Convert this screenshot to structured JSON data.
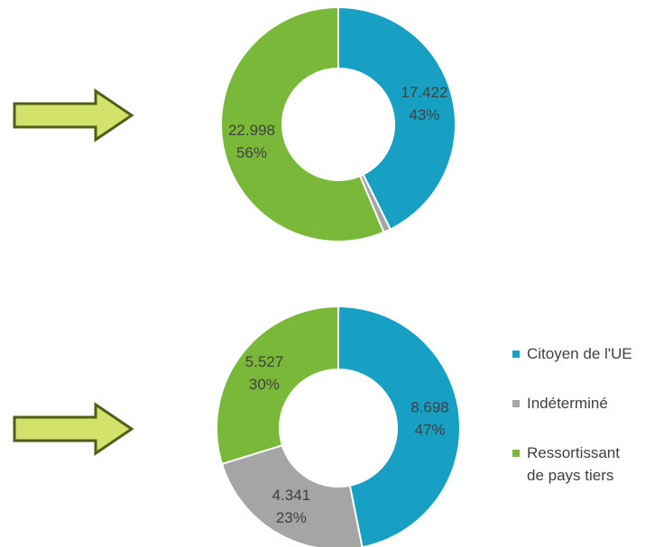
{
  "chart_data": [
    {
      "type": "donut",
      "values": [
        17422,
        400,
        22998
      ],
      "value_labels": [
        "17.422",
        null,
        "22.998"
      ],
      "percent_labels": [
        "43%",
        null,
        "56%"
      ]
    },
    {
      "type": "donut",
      "values": [
        8698,
        4341,
        5527
      ],
      "value_labels": [
        "8.698",
        "4.341",
        "5.527"
      ],
      "percent_labels": [
        "47%",
        "23%",
        "30%"
      ]
    }
  ],
  "legend": {
    "labels": [
      "Citoyen de l'UE",
      "Indéterminé",
      "Ressortissant de pays tiers"
    ],
    "colors": [
      "#17a0c4",
      "#a5a5a5",
      "#7ab83a"
    ]
  }
}
